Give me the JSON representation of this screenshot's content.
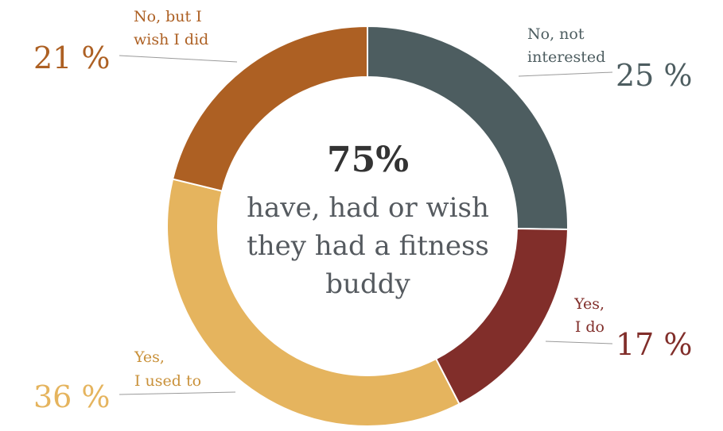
{
  "chart_data": {
    "type": "pie",
    "categories": [
      "No, not interested",
      "Yes, I do",
      "Yes, I used to",
      "No, but I wish I did"
    ],
    "values": [
      25,
      17,
      36,
      21
    ],
    "series": [
      {
        "label_lines": [
          "No, not",
          "interested"
        ],
        "value_text": "25  %",
        "value": 25,
        "color": "#4d5d60"
      },
      {
        "label_lines": [
          "Yes,",
          "I do"
        ],
        "value_text": "17  %",
        "value": 17,
        "color": "#812e2a"
      },
      {
        "label_lines": [
          "Yes,",
          "I used to"
        ],
        "value_text": "36  %",
        "value": 36,
        "color": "#e5b45e"
      },
      {
        "label_lines": [
          "No, but I",
          "wish I did"
        ],
        "value_text": "21  %",
        "value": 21,
        "color": "#ad6023"
      }
    ]
  },
  "center": {
    "headline": "75%",
    "subtitle": "have, had or wish they had a fitness buddy"
  }
}
